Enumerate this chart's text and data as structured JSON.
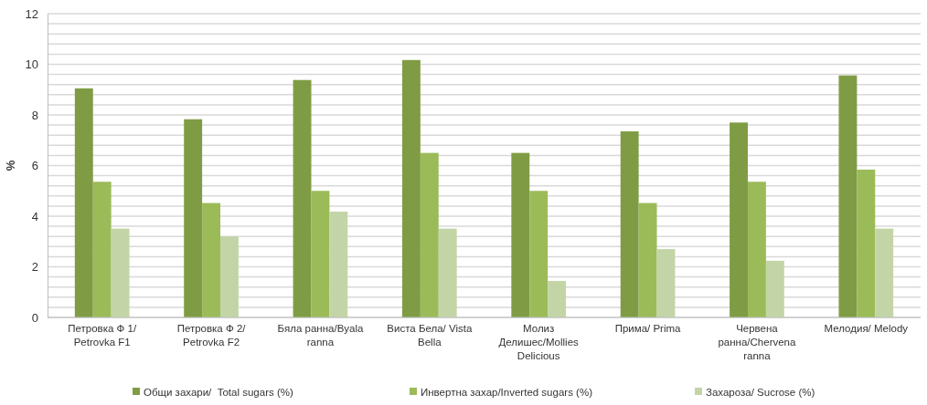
{
  "chart_data": {
    "type": "bar",
    "ylabel": "%",
    "categories": [
      "Петровка Ф 1/ Petrovka F1",
      "Петровка Ф 2/ Petrovka F2",
      "Бяла ранна/Byala ranna",
      "Виста Бела/ Vista Bella",
      "Молиз Делишес/Mollies Delicious",
      "Прима/ Prima",
      "Червена ранна/Chervena ranna",
      "Мелодия/ Melody"
    ],
    "series": [
      {
        "name": "Общи захари/  Total sugars (%)",
        "color": "#7f9c45",
        "values": [
          9.05,
          7.83,
          9.38,
          10.17,
          6.5,
          7.35,
          7.7,
          9.56
        ]
      },
      {
        "name": "Инвертна захар/Inverted sugars (%)",
        "color": "#9bbb59",
        "values": [
          5.36,
          4.52,
          5.0,
          6.5,
          5.0,
          4.52,
          5.36,
          5.84
        ]
      },
      {
        "name": "Захароза/ Sucrose (%)",
        "color": "#c3d5a6",
        "values": [
          3.51,
          3.2,
          4.18,
          3.51,
          1.44,
          2.7,
          2.24,
          3.51
        ]
      }
    ],
    "ylim": [
      0,
      12
    ],
    "yticks": [
      0,
      {
        "value": 0.4,
        "label": null
      },
      {
        "value": 0.8,
        "label": null
      },
      {
        "value": 1.2,
        "label": null
      },
      {
        "value": 1.6,
        "label": null
      },
      2,
      {
        "value": 2.4,
        "label": null
      },
      {
        "value": 2.8,
        "label": null
      },
      {
        "value": 3.2,
        "label": null
      },
      {
        "value": 3.6,
        "label": null
      },
      4,
      {
        "value": 4.4,
        "label": null
      },
      {
        "value": 4.8,
        "label": null
      },
      {
        "value": 5.2,
        "label": null
      },
      {
        "value": 5.6,
        "label": null
      },
      6,
      {
        "value": 6.4,
        "label": null
      },
      {
        "value": 6.8,
        "label": null
      },
      {
        "value": 7.2,
        "label": null
      },
      {
        "value": 7.6,
        "label": null
      },
      8,
      {
        "value": 8.4,
        "label": null
      },
      {
        "value": 8.8,
        "label": null
      },
      {
        "value": 9.2,
        "label": null
      },
      {
        "value": 9.6,
        "label": null
      },
      10,
      {
        "value": 10.4,
        "label": null
      },
      {
        "value": 10.8,
        "label": null
      },
      {
        "value": 11.2,
        "label": null
      },
      {
        "value": 11.6,
        "label": null
      },
      12
    ],
    "grid": true,
    "legend": "bottom"
  }
}
